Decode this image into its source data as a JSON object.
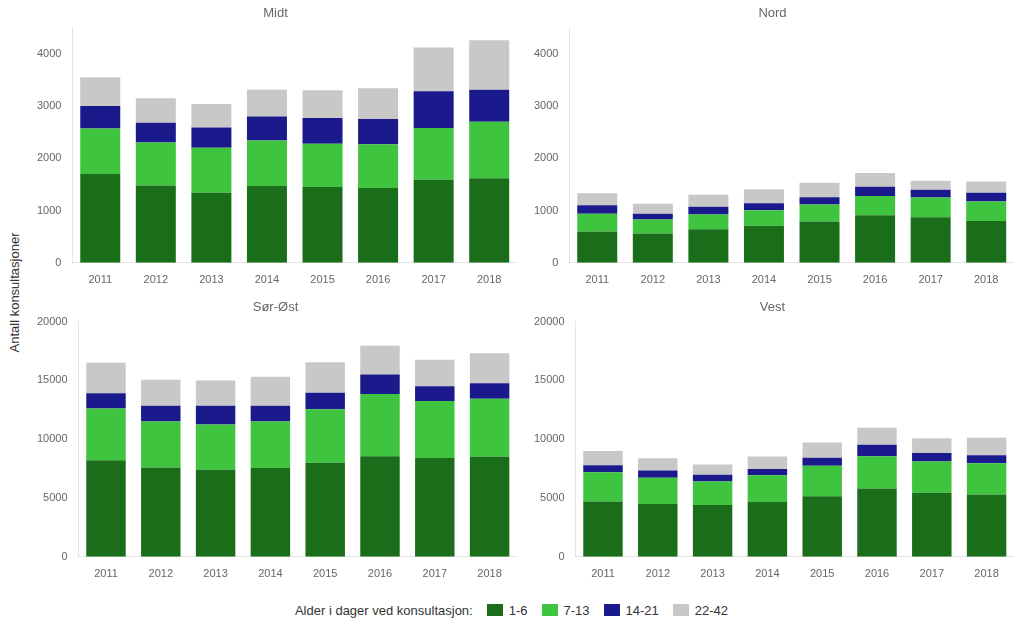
{
  "chart_data": [
    {
      "type": "bar",
      "title": "Midt",
      "stacked": true,
      "grid": false,
      "ylabel": "Antall konsultasjoner",
      "legend_title": "Alder i dager ved konsultasjon:",
      "categories": [
        "2011",
        "2012",
        "2013",
        "2014",
        "2015",
        "2016",
        "2017",
        "2018"
      ],
      "series": [
        {
          "name": "1-6",
          "color": "#1a6e1a",
          "values": [
            1700,
            1480,
            1340,
            1470,
            1450,
            1430,
            1590,
            1620
          ]
        },
        {
          "name": "7-13",
          "color": "#3ec43e",
          "values": [
            870,
            820,
            860,
            870,
            830,
            840,
            990,
            1080
          ]
        },
        {
          "name": "14-21",
          "color": "#1a1a8c",
          "values": [
            430,
            380,
            390,
            460,
            490,
            480,
            700,
            610
          ]
        },
        {
          "name": "22-42",
          "color": "#c8c8c8",
          "values": [
            550,
            470,
            450,
            510,
            530,
            590,
            840,
            950
          ]
        }
      ],
      "ylim": [
        0,
        4500
      ],
      "yticks": [
        0,
        1000,
        2000,
        3000,
        4000
      ]
    },
    {
      "type": "bar",
      "title": "Nord",
      "stacked": true,
      "grid": false,
      "categories": [
        "2011",
        "2012",
        "2013",
        "2014",
        "2015",
        "2016",
        "2017",
        "2018"
      ],
      "series": [
        {
          "name": "1-6",
          "color": "#1a6e1a",
          "values": [
            600,
            560,
            640,
            710,
            790,
            910,
            870,
            800
          ]
        },
        {
          "name": "7-13",
          "color": "#3ec43e",
          "values": [
            340,
            270,
            285,
            295,
            325,
            370,
            380,
            375
          ]
        },
        {
          "name": "14-21",
          "color": "#1a1a8c",
          "values": [
            160,
            110,
            145,
            135,
            140,
            175,
            150,
            165
          ]
        },
        {
          "name": "22-42",
          "color": "#c8c8c8",
          "values": [
            230,
            190,
            230,
            265,
            275,
            265,
            170,
            215
          ]
        }
      ],
      "ylim": [
        0,
        4500
      ],
      "yticks": [
        0,
        1000,
        2000,
        3000,
        4000
      ]
    },
    {
      "type": "bar",
      "title": "Sør-Øst",
      "stacked": true,
      "grid": false,
      "categories": [
        "2011",
        "2012",
        "2013",
        "2014",
        "2015",
        "2016",
        "2017",
        "2018"
      ],
      "series": [
        {
          "name": "1-6",
          "color": "#1a6e1a",
          "values": [
            8200,
            7600,
            7400,
            7550,
            8000,
            8550,
            8400,
            8500
          ]
        },
        {
          "name": "7-13",
          "color": "#3ec43e",
          "values": [
            4400,
            3900,
            3850,
            3950,
            4550,
            5300,
            4850,
            4950
          ]
        },
        {
          "name": "14-21",
          "color": "#1a1a8c",
          "values": [
            1300,
            1350,
            1600,
            1350,
            1400,
            1650,
            1250,
            1300
          ]
        },
        {
          "name": "22-42",
          "color": "#c8c8c8",
          "values": [
            2600,
            2200,
            2150,
            2450,
            2600,
            2450,
            2250,
            2550
          ]
        }
      ],
      "ylim": [
        0,
        20000
      ],
      "yticks": [
        0,
        5000,
        10000,
        15000,
        20000
      ]
    },
    {
      "type": "bar",
      "title": "Vest",
      "stacked": true,
      "grid": false,
      "categories": [
        "2011",
        "2012",
        "2013",
        "2014",
        "2015",
        "2016",
        "2017",
        "2018"
      ],
      "series": [
        {
          "name": "1-6",
          "color": "#1a6e1a",
          "values": [
            4700,
            4500,
            4400,
            4650,
            5150,
            5800,
            5450,
            5300
          ]
        },
        {
          "name": "7-13",
          "color": "#3ec43e",
          "values": [
            2500,
            2230,
            2000,
            2280,
            2600,
            2750,
            2650,
            2650
          ]
        },
        {
          "name": "14-21",
          "color": "#1a1a8c",
          "values": [
            590,
            600,
            580,
            540,
            680,
            980,
            730,
            680
          ]
        },
        {
          "name": "22-42",
          "color": "#c8c8c8",
          "values": [
            1200,
            1050,
            870,
            1050,
            1300,
            1450,
            1250,
            1500
          ]
        }
      ],
      "ylim": [
        0,
        20000
      ],
      "yticks": [
        0,
        5000,
        10000,
        15000,
        20000
      ]
    }
  ]
}
